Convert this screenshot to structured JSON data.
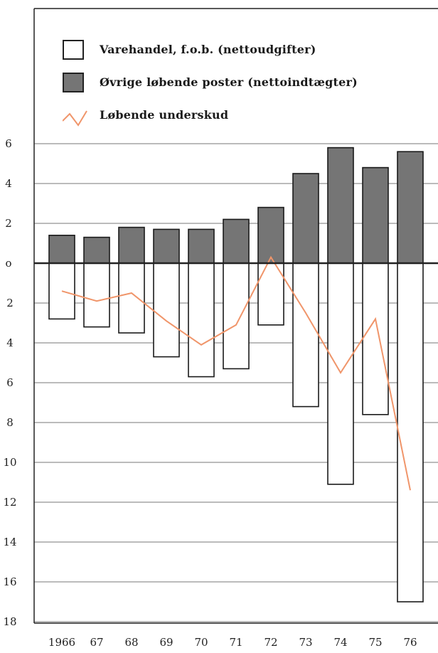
{
  "chart_data": {
    "type": "bar",
    "categories": [
      "1966",
      "67",
      "68",
      "69",
      "70",
      "71",
      "72",
      "73",
      "74",
      "75",
      "76"
    ],
    "series": [
      {
        "name": "Varehandel, f.o.b. (nettoudgifter)",
        "values": [
          2.8,
          3.2,
          3.5,
          4.7,
          5.7,
          5.3,
          3.1,
          7.2,
          11.1,
          7.6,
          17.0
        ],
        "direction": "down"
      },
      {
        "name": "Øvrige løbende poster (nettoindtægter)",
        "values": [
          1.4,
          1.3,
          1.8,
          1.7,
          1.7,
          2.2,
          2.8,
          4.5,
          5.8,
          4.8,
          5.6
        ],
        "direction": "up"
      },
      {
        "name": "Løbende underskud",
        "values": [
          1.4,
          1.9,
          1.5,
          2.9,
          4.1,
          3.1,
          -0.3,
          2.5,
          5.5,
          2.8,
          11.4
        ],
        "direction": "down",
        "kind": "line"
      }
    ],
    "y_tick_labels_up": [
      "6",
      "4",
      "2"
    ],
    "y_tick_label_zero": "o",
    "y_tick_labels_down": [
      "2",
      "4",
      "6",
      "8",
      "10",
      "12",
      "14",
      "16",
      "18"
    ],
    "ylim_up": 6,
    "ylim_down": 18,
    "grid": true,
    "legend_position": "top-left",
    "colors": {
      "positive_bar": "#757575",
      "negative_bar": "#ffffff",
      "line": "#f0956a",
      "axis": "#222222",
      "grid": "#777777"
    }
  },
  "legend": {
    "items": [
      "Varehandel, f.o.b. (nettoudgifter)",
      "Øvrige løbende poster (nettoindtægter)",
      "Løbende underskud"
    ]
  }
}
